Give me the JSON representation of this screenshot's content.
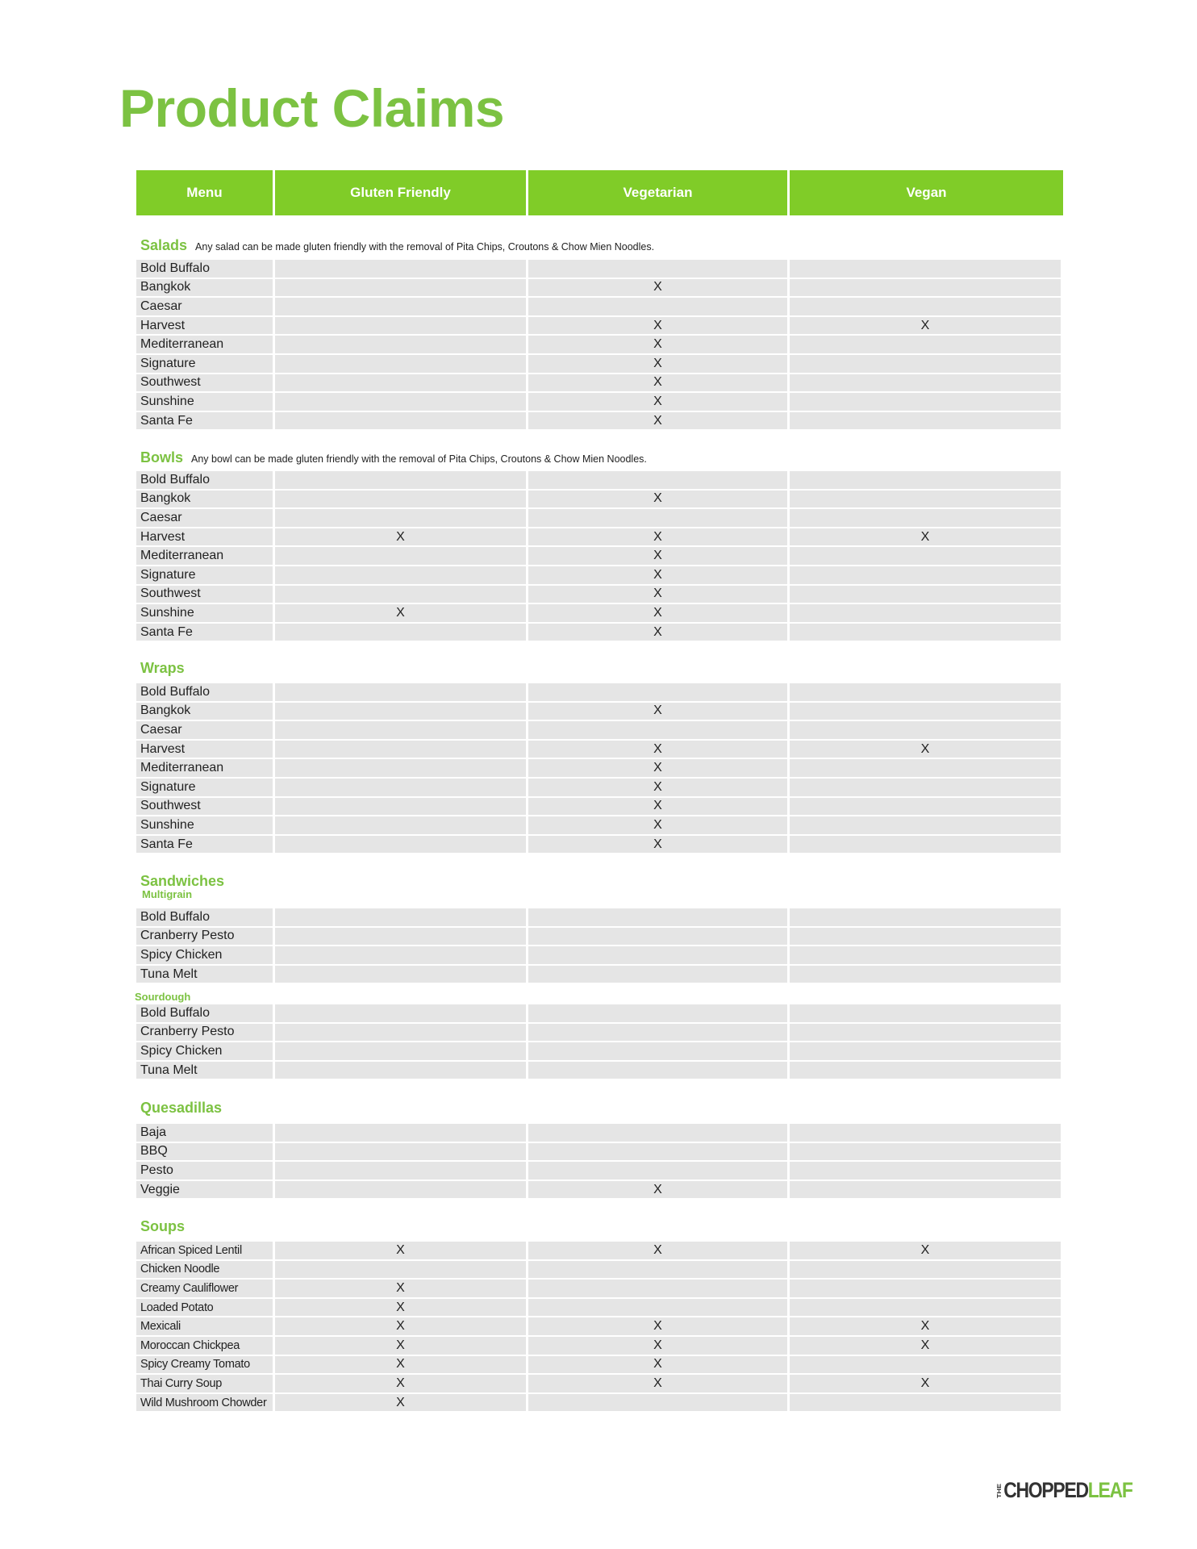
{
  "title": "Product Claims",
  "columns": [
    "Menu",
    "Gluten Friendly",
    "Vegetarian",
    "Vegan"
  ],
  "mark": "X",
  "colors": {
    "accent": "#7cc242",
    "header_bg": "#80cc28",
    "row_bg": "#e5e5e5"
  },
  "sections": [
    {
      "title": "Salads",
      "note": "Any salad can be made gluten friendly with the removal of Pita Chips, Croutons & Chow Mien Noodles.",
      "rows": [
        [
          "Bold Buffalo",
          "",
          "",
          ""
        ],
        [
          "Bangkok",
          "",
          "X",
          ""
        ],
        [
          "Caesar",
          "",
          "",
          ""
        ],
        [
          "Harvest",
          "",
          "X",
          "X"
        ],
        [
          "Mediterranean",
          "",
          "X",
          ""
        ],
        [
          "Signature",
          "",
          "X",
          ""
        ],
        [
          "Southwest",
          "",
          "X",
          ""
        ],
        [
          "Sunshine",
          "",
          "X",
          ""
        ],
        [
          "Santa Fe",
          "",
          "X",
          ""
        ]
      ]
    },
    {
      "title": "Bowls",
      "note": "Any bowl can be made gluten friendly with the removal of Pita Chips, Croutons & Chow Mien Noodles.",
      "rows": [
        [
          "Bold Buffalo",
          "",
          "",
          ""
        ],
        [
          "Bangkok",
          "",
          "X",
          ""
        ],
        [
          "Caesar",
          "",
          "",
          ""
        ],
        [
          "Harvest",
          "X",
          "X",
          "X"
        ],
        [
          "Mediterranean",
          "",
          "X",
          ""
        ],
        [
          "Signature",
          "",
          "X",
          ""
        ],
        [
          "Southwest",
          "",
          "X",
          ""
        ],
        [
          "Sunshine",
          "X",
          "X",
          ""
        ],
        [
          "Santa Fe",
          "",
          "X",
          ""
        ]
      ]
    },
    {
      "title": "Wraps",
      "rows": [
        [
          "Bold Buffalo",
          "",
          "",
          ""
        ],
        [
          "Bangkok",
          "",
          "X",
          ""
        ],
        [
          "Caesar",
          "",
          "",
          ""
        ],
        [
          "Harvest",
          "",
          "X",
          "X"
        ],
        [
          "Mediterranean",
          "",
          "X",
          ""
        ],
        [
          "Signature",
          "",
          "X",
          ""
        ],
        [
          "Southwest",
          "",
          "X",
          ""
        ],
        [
          "Sunshine",
          "",
          "X",
          ""
        ],
        [
          "Santa Fe",
          "",
          "X",
          ""
        ]
      ]
    },
    {
      "title": "Sandwiches",
      "subtitle": "Multigrain",
      "rows": [
        [
          "Bold Buffalo",
          "",
          "",
          ""
        ],
        [
          "Cranberry Pesto",
          "",
          "",
          ""
        ],
        [
          "Spicy Chicken",
          "",
          "",
          ""
        ],
        [
          "Tuna Melt",
          "",
          "",
          ""
        ]
      ]
    },
    {
      "subtitle": "Sourdough",
      "rows": [
        [
          "Bold Buffalo",
          "",
          "",
          ""
        ],
        [
          "Cranberry Pesto",
          "",
          "",
          ""
        ],
        [
          "Spicy Chicken",
          "",
          "",
          ""
        ],
        [
          "Tuna Melt",
          "",
          "",
          ""
        ]
      ]
    },
    {
      "title": "Quesadillas",
      "rows": [
        [
          "Baja",
          "",
          "",
          ""
        ],
        [
          "BBQ",
          "",
          "",
          ""
        ],
        [
          "Pesto",
          "",
          "",
          ""
        ],
        [
          "Veggie",
          "",
          "X",
          ""
        ]
      ]
    },
    {
      "title": "Soups",
      "rows": [
        [
          "African Spiced Lentil",
          "X",
          "X",
          "X"
        ],
        [
          "Chicken Noodle",
          "",
          "",
          ""
        ],
        [
          "Creamy Cauliflower",
          "X",
          "",
          ""
        ],
        [
          "Loaded Potato",
          "X",
          "",
          ""
        ],
        [
          "Mexicali",
          "X",
          "X",
          "X"
        ],
        [
          "Moroccan Chickpea",
          "X",
          "X",
          "X"
        ],
        [
          "Spicy Creamy Tomato",
          "X",
          "X",
          ""
        ],
        [
          "Thai Curry Soup",
          "X",
          "X",
          "X"
        ],
        [
          "Wild Mushroom Chowder",
          "X",
          "",
          ""
        ]
      ]
    }
  ],
  "logo": {
    "the": "THE",
    "chopped": "CHOPPED",
    "leaf": "LEAF"
  }
}
